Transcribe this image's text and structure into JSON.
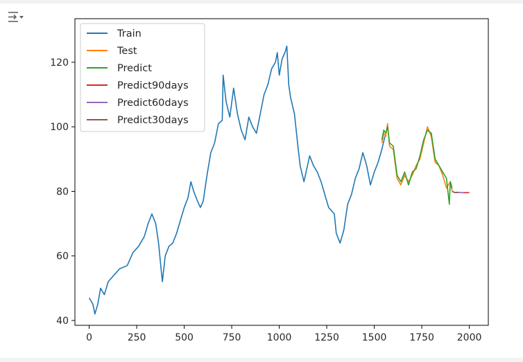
{
  "ui": {
    "output_toggle_icon": "output-collapse-icon"
  },
  "chart_data": {
    "type": "line",
    "xlim": [
      -75,
      2100
    ],
    "ylim": [
      38.5,
      133.5
    ],
    "xticks": [
      0,
      250,
      500,
      750,
      1000,
      1250,
      1500,
      1750,
      2000
    ],
    "yticks": [
      40,
      60,
      80,
      100,
      120
    ],
    "grid": false,
    "legend_position": "top-left",
    "series": [
      {
        "name": "Train",
        "color": "#1f77b4",
        "x": [
          0,
          10,
          20,
          30,
          45,
          60,
          80,
          100,
          130,
          160,
          200,
          230,
          260,
          290,
          310,
          330,
          350,
          365,
          375,
          385,
          400,
          420,
          440,
          460,
          480,
          500,
          520,
          535,
          550,
          570,
          585,
          600,
          620,
          640,
          660,
          680,
          700,
          705,
          720,
          740,
          760,
          780,
          800,
          820,
          840,
          860,
          880,
          900,
          920,
          940,
          960,
          980,
          990,
          1000,
          1015,
          1030,
          1040,
          1050,
          1060,
          1080,
          1100,
          1110,
          1130,
          1160,
          1180,
          1200,
          1220,
          1240,
          1260,
          1290,
          1300,
          1320,
          1340,
          1360,
          1380,
          1400,
          1420,
          1440,
          1460,
          1480,
          1500,
          1520,
          1540,
          1556
        ],
        "y": [
          47,
          46,
          45,
          42,
          45,
          50,
          48,
          52,
          54,
          56,
          57,
          61,
          63,
          66,
          70,
          73,
          70,
          64,
          58,
          52,
          60,
          63,
          64,
          67,
          71,
          75,
          78,
          83,
          80,
          77,
          75,
          77,
          85,
          92,
          95,
          101,
          102,
          116,
          108,
          103,
          112,
          104,
          99,
          96,
          103,
          100,
          98,
          104,
          110,
          113,
          118,
          120,
          123,
          116,
          121,
          123,
          125,
          113,
          109,
          104,
          93,
          88,
          83,
          91,
          88,
          86,
          83,
          79,
          75,
          73,
          67,
          64,
          68,
          76,
          79,
          84,
          87,
          92,
          88,
          82,
          86,
          89,
          93,
          97
        ]
      },
      {
        "name": "Test",
        "color": "#ff7f0e",
        "x": [
          1540,
          1550,
          1560,
          1570,
          1580,
          1600,
          1620,
          1640,
          1660,
          1680,
          1700,
          1720,
          1740,
          1760,
          1780,
          1800,
          1820,
          1840,
          1860,
          1880,
          1900,
          1910
        ],
        "y": [
          95,
          98,
          97,
          101,
          94,
          93,
          84,
          82,
          85,
          83,
          85,
          88,
          90,
          95,
          100,
          97,
          89,
          88,
          85,
          81,
          83,
          80
        ]
      },
      {
        "name": "Predict",
        "color": "#2ca02c",
        "x": [
          1540,
          1550,
          1560,
          1570,
          1580,
          1600,
          1620,
          1640,
          1660,
          1680,
          1700,
          1720,
          1740,
          1760,
          1780,
          1800,
          1820,
          1840,
          1860,
          1880,
          1895,
          1900,
          1910
        ],
        "y": [
          96,
          99,
          98,
          100,
          95,
          94,
          85,
          83,
          86,
          82,
          86,
          87,
          91,
          96,
          99,
          98,
          90,
          88,
          86,
          84,
          76,
          83,
          81
        ]
      },
      {
        "name": "Predict90days",
        "color": "#d62728",
        "x": [
          1910,
          1925,
          1940,
          1960,
          1980,
          2000
        ],
        "y": [
          80,
          79.6,
          79.7,
          79.6,
          79.6,
          79.6
        ]
      },
      {
        "name": "Predict60days",
        "color": "#9467bd",
        "x": [
          1910,
          1925,
          1940,
          1955,
          1970
        ],
        "y": [
          80,
          79.6,
          79.7,
          79.6,
          79.6
        ]
      },
      {
        "name": "Predict30days",
        "color": "#8c564b",
        "x": [
          1910,
          1925,
          1940
        ],
        "y": [
          80,
          79.6,
          79.7
        ]
      }
    ]
  }
}
